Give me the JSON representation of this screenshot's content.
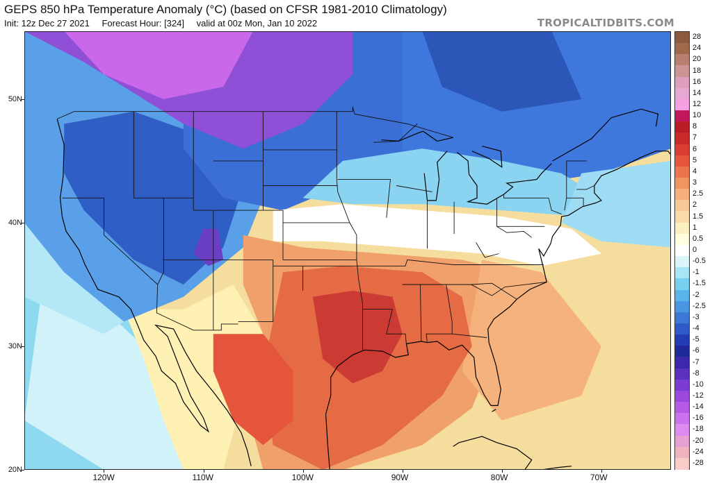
{
  "header": {
    "title": "GEPS 850 hPa Temperature Anomaly (°C) (based on CFSR 1981-2010 Climatology)",
    "init": "Init: 12z Dec 27 2021",
    "forecast_hour": "Forecast Hour: [324]",
    "valid": "valid at 00z Mon, Jan 10 2022",
    "watermark": "TROPICALTIDBITS.COM"
  },
  "map": {
    "projection": "lat-lon",
    "lon_range": [
      -128,
      -63
    ],
    "lat_range": [
      20,
      55.5
    ],
    "lat_labels": [
      {
        "v": 20,
        "t": "20N"
      },
      {
        "v": 30,
        "t": "30N"
      },
      {
        "v": 40,
        "t": "40N"
      },
      {
        "v": 50,
        "t": "50N"
      }
    ],
    "lon_labels": [
      {
        "v": -120,
        "t": "120W"
      },
      {
        "v": -110,
        "t": "110W"
      },
      {
        "v": -100,
        "t": "100W"
      },
      {
        "v": -90,
        "t": "90W"
      },
      {
        "v": -80,
        "t": "80W"
      },
      {
        "v": -70,
        "t": "70W"
      }
    ],
    "background_color": "#f5dd9e",
    "anomaly_regions": [
      {
        "name": "ocean-south-pacific",
        "color": "#ffffc8",
        "points": [
          [
            -128,
            33
          ],
          [
            -121,
            33
          ],
          [
            -118,
            30
          ],
          [
            -114,
            25
          ],
          [
            -110,
            21
          ],
          [
            -108,
            20
          ],
          [
            -128,
            20
          ]
        ]
      },
      {
        "name": "west-coast-cyan",
        "color": "#8fd9f0",
        "points": [
          [
            -128,
            46
          ],
          [
            -121,
            42
          ],
          [
            -119,
            36
          ],
          [
            -115,
            32
          ],
          [
            -112,
            28
          ],
          [
            -110,
            22
          ],
          [
            -114,
            20
          ],
          [
            -128,
            20
          ]
        ]
      },
      {
        "name": "pale-cyan-sw",
        "color": "#d2f2fa",
        "points": [
          [
            -126,
            36
          ],
          [
            -120,
            33
          ],
          [
            -116,
            30
          ],
          [
            -112,
            24
          ],
          [
            -110,
            20
          ],
          [
            -120,
            20
          ],
          [
            -128,
            24
          ]
        ]
      },
      {
        "name": "southwest-yellow",
        "color": "#fff0b4",
        "points": [
          [
            -118,
            33
          ],
          [
            -112,
            33
          ],
          [
            -107,
            35
          ],
          [
            -104,
            31
          ],
          [
            -106,
            26
          ],
          [
            -108,
            20
          ],
          [
            -112,
            20
          ],
          [
            -114,
            24
          ],
          [
            -116,
            29
          ]
        ]
      },
      {
        "name": "pacific-cyan-west",
        "color": "#b3e8f7",
        "points": [
          [
            -128,
            55.5
          ],
          [
            -120,
            55.5
          ],
          [
            -118,
            50
          ],
          [
            -121,
            43
          ],
          [
            -119,
            38
          ],
          [
            -116,
            33
          ],
          [
            -120,
            31
          ],
          [
            -128,
            34
          ]
        ]
      },
      {
        "name": "west-blue",
        "color": "#5aa0e8",
        "points": [
          [
            -128,
            55.5
          ],
          [
            -112,
            55.5
          ],
          [
            -106,
            48
          ],
          [
            -104,
            42
          ],
          [
            -106,
            38
          ],
          [
            -112,
            34
          ],
          [
            -118,
            32
          ],
          [
            -124,
            36
          ],
          [
            -128,
            40
          ]
        ]
      },
      {
        "name": "great-basin-darkblue",
        "color": "#2f5fc4",
        "points": [
          [
            -124,
            48
          ],
          [
            -117,
            49
          ],
          [
            -110,
            47
          ],
          [
            -106,
            43
          ],
          [
            -108,
            38
          ],
          [
            -112,
            35
          ],
          [
            -117,
            37
          ],
          [
            -122,
            41
          ],
          [
            -124,
            44
          ]
        ]
      },
      {
        "name": "four-corners-purple",
        "color": "#6a3fc4",
        "points": [
          [
            -110,
            39.5
          ],
          [
            -108.5,
            39.5
          ],
          [
            -108,
            37
          ],
          [
            -109.5,
            36.5
          ],
          [
            -111,
            37.5
          ]
        ]
      },
      {
        "name": "north-plains-blue",
        "color": "#3c6fd6",
        "points": [
          [
            -112,
            55.5
          ],
          [
            -90,
            55.5
          ],
          [
            -88,
            50
          ],
          [
            -88,
            45.5
          ],
          [
            -96,
            43
          ],
          [
            -102,
            41
          ],
          [
            -108,
            42
          ],
          [
            -112,
            46
          ]
        ]
      },
      {
        "name": "canada-purple",
        "color": "#8f4fd6",
        "points": [
          [
            -128,
            55.5
          ],
          [
            -95,
            55.5
          ],
          [
            -95,
            52
          ],
          [
            -100,
            48
          ],
          [
            -106,
            46
          ],
          [
            -112,
            48
          ],
          [
            -118,
            51
          ],
          [
            -122,
            53
          ]
        ]
      },
      {
        "name": "bc-magenta",
        "color": "#c968e8",
        "points": [
          [
            -124,
            55.5
          ],
          [
            -105,
            55.5
          ],
          [
            -108,
            51
          ],
          [
            -114,
            50
          ],
          [
            -120,
            52
          ]
        ]
      },
      {
        "name": "northeast-blue",
        "color": "#3e78dc",
        "points": [
          [
            -90,
            55.5
          ],
          [
            -63,
            55.5
          ],
          [
            -63,
            46
          ],
          [
            -70,
            44
          ],
          [
            -78,
            43
          ],
          [
            -85,
            44
          ],
          [
            -90,
            46
          ]
        ]
      },
      {
        "name": "hudson-darkblue",
        "color": "#2c56b8",
        "points": [
          [
            -88,
            55.5
          ],
          [
            -75,
            55.5
          ],
          [
            -72,
            50
          ],
          [
            -80,
            49
          ],
          [
            -86,
            51
          ]
        ]
      },
      {
        "name": "great-lakes-cyan",
        "color": "#8ad4f2",
        "points": [
          [
            -96,
            45
          ],
          [
            -88,
            46
          ],
          [
            -80,
            45
          ],
          [
            -74,
            44
          ],
          [
            -70,
            42
          ],
          [
            -72,
            40.5
          ],
          [
            -80,
            41
          ],
          [
            -88,
            41.5
          ],
          [
            -95,
            41.5
          ],
          [
            -100,
            42
          ]
        ]
      },
      {
        "name": "atlantic-cyan",
        "color": "#9ddcf3",
        "points": [
          [
            -72,
            44
          ],
          [
            -63,
            45
          ],
          [
            -63,
            38
          ],
          [
            -70,
            38.5
          ],
          [
            -74,
            40
          ]
        ]
      },
      {
        "name": "midwest-white",
        "color": "#ffffff",
        "points": [
          [
            -103,
            41
          ],
          [
            -96,
            41.5
          ],
          [
            -88,
            41
          ],
          [
            -80,
            40.5
          ],
          [
            -73,
            39.5
          ],
          [
            -70,
            37.5
          ],
          [
            -76,
            36.5
          ],
          [
            -82,
            37.5
          ],
          [
            -90,
            38
          ],
          [
            -98,
            38.5
          ],
          [
            -103,
            38.5
          ]
        ]
      },
      {
        "name": "southern-plains-orange",
        "color": "#f0a06a",
        "points": [
          [
            -106,
            39
          ],
          [
            -100,
            38
          ],
          [
            -92,
            37.5
          ],
          [
            -84,
            37
          ],
          [
            -76,
            35.5
          ],
          [
            -74,
            33
          ],
          [
            -80,
            31
          ],
          [
            -83,
            25
          ],
          [
            -88,
            22
          ],
          [
            -96,
            20
          ],
          [
            -104,
            20
          ],
          [
            -106,
            26
          ],
          [
            -104,
            31
          ],
          [
            -106,
            35
          ]
        ]
      },
      {
        "name": "southeast-orange",
        "color": "#f5b27c",
        "points": [
          [
            -82,
            37
          ],
          [
            -76,
            36
          ],
          [
            -73,
            33
          ],
          [
            -70,
            30
          ],
          [
            -72,
            26
          ],
          [
            -80,
            24
          ],
          [
            -84,
            28
          ]
        ]
      },
      {
        "name": "gulf-red",
        "color": "#e46b44",
        "points": [
          [
            -102,
            36
          ],
          [
            -96,
            36.5
          ],
          [
            -88,
            36
          ],
          [
            -84,
            34
          ],
          [
            -83,
            30
          ],
          [
            -86,
            26
          ],
          [
            -92,
            22
          ],
          [
            -98,
            20
          ],
          [
            -103,
            22
          ],
          [
            -104,
            28
          ]
        ]
      },
      {
        "name": "texas-darkred",
        "color": "#cc3b33",
        "points": [
          [
            -99,
            34
          ],
          [
            -95,
            34.5
          ],
          [
            -91,
            34
          ],
          [
            -90,
            31
          ],
          [
            -92,
            28
          ],
          [
            -95,
            27
          ],
          [
            -98,
            29
          ]
        ]
      },
      {
        "name": "mexico-red",
        "color": "#e4553c",
        "points": [
          [
            -109,
            31
          ],
          [
            -104,
            31
          ],
          [
            -101,
            28
          ],
          [
            -101,
            24
          ],
          [
            -104,
            22
          ],
          [
            -107,
            24
          ],
          [
            -109,
            28
          ]
        ]
      }
    ],
    "state_lines": [
      "-124.7,48.4 -123,49 -95,49 -95,49.4 -94.8,48.8 -89.5,48 -84.9,46.9",
      "-117,49 -117,42 -111,42 -111,49",
      "-124.2,42 -120,42 -120,39 -114.6,35",
      "-114,42 -114,36 -114.6,35 -114.7,32.7 -111,31.3 -108.2,31.3 -108.2,31.8 -106.5,31.8",
      "-109,45 -104,45",
      "-104,49 -104,41 -102,41 -102,37",
      "-111,41 -111,42",
      "-111,41 -104,41",
      "-109,41 -109,31.3",
      "-114,37 -103,37",
      "-103,37 -103,32 -106.5,32",
      "-104,43 -96.5,43",
      "-104,45.9 -96.6,45.9",
      "-102,40 -95.3,40",
      "-102,37 -94.6,37",
      "-100,36.5 -100,34.5",
      "-103,36.5 -94.4,36.5",
      "-96.6,49 -96.6,43.5 -96.5,42.5 -95.3,40 -94.6,39 -94.6,37 -94.4,35.4 -94,33.5 -94,29.7",
      "-94.6,36.5 -89.7,36.5 -89.5,37 -84.9,36.6 -81.7,36.6 -75.8,36.6",
      "-94,33 -91,33",
      "-91.6,40.4 -91.2,43.5 -96.5,43.5",
      "-91,33 -91.6,31 -89.7,31 -89.6,30.2",
      "-90,35 -88.2,35 -88.1,30.4",
      "-88.2,35 -85.6,35 -85,32 -85,31 -87.6,31 -87.5,30.3",
      "-85.6,35 -83.1,35 -81,34.1 -79.7,34.8 -75.5,35.2",
      "-85,31 -81.5,30.7",
      "-83.1,35 -81,35.1 -78.5,33.8",
      "-87.5,41.8 -87.5,37.9",
      "-84.8,41.7 -84.8,39.1",
      "-80.5,42 -80.5,39.7 -75.7,39.7",
      "-80.5,39.7 -79.5,39.2 -77.8,39.3 -77,38.8",
      "-82.6,38.4 -81.7,37.2 -80.3,37.5",
      "-79.8,42.3 -79.8,42 -75.3,42 -75,41 -74,40.7",
      "-73.5,42 -73.5,45 -71.5,45",
      "-72.5,42.7 -71.5,42.7 -70.7,43",
      "-71.8,42 -71.8,41.3",
      "-73.7,41 -73.5,42 -71.8,42",
      "-90.6,43 -87,42.5",
      "-92.9,46.5 -90.4,46.6 -88.5,48"
    ],
    "coastlines": [
      "-124.7,48.4 -124,46.3 -124.1,43.7 -124.4,42 -124.2,40.5 -123.8,39.3 -122.5,37.8 -121.9,36.6 -120.6,34.6 -118.5,34 -117.3,33 -116.6,31.7 -116,30.5 -114.8,29.2 -114.2,28 -112.8,27 -112,25.5 -110.3,23.6 -109.5,23.1 -110,24.2 -111.3,26 -112.5,28.5 -113.6,30.8 -114.8,31.7 -113,31.4 -111.8,29.5 -110.7,28 -109,26.3 -107.6,24.8 -106.2,23 -105.6,21.6 -105.2,20.3",
      "-97.3,20 -97.5,22 -97.7,24.5 -97.2,26 -97.2,27.5 -96.5,28.4 -95,29.3 -93.8,29.7 -92,29.6 -90.7,29.1 -89.4,29.3 -89.6,30.2 -88.1,30.4 -87.5,30.3 -86.5,30.4 -85.3,29.7 -84,30.1 -82.8,29.1 -82.6,27.5 -81.8,26.1 -81.1,25.2 -80.4,25.2 -80.1,26.5 -80.6,28.5 -81.3,30.3 -81.4,31.4 -80.8,32.2 -79.2,33.2 -78.5,33.8 -77.2,34.6 -75.5,35.2 -75.9,36.6 -76.3,37.9 -75.8,37.3 -75.1,38.3 -74.9,38.9 -74.1,39.8 -74,40.5 -73.3,40.6 -71.9,41.3 -70.6,41.6 -70,41.8 -70.7,42.4 -70.7,43 -70,43.8 -68.5,44.3 -67,44.9 -66,45.3 -64.5,45.8 -63.3,45.8 -63,45.5",
      "-92.1,46.7 -90.4,46.6 -88.3,47.3 -87.9,47.4 -86.5,46.6 -84.9,46.9",
      "-87.8,44 -87.5,41.8 -86.6,41.8 -86.3,43.5 -86.5,44.9 -85.5,45.8",
      "-84.5,45.7 -83.4,45 -83.3,43.9 -82.5,43 -82.5,42 -83.4,41.7 -81.5,41.5 -79.8,42.3 -78.9,42.9 -79.5,43.2 -76.5,43.5 -76,44 -75,44.8",
      "-83,45.8 -81.3,45.2 -80,44.5 -80.1,45.8 -82,46.2",
      "-74.9,45 -71,46.8 -69,48.5 -66,49.2 -64.3,48.8 -64.5,47.8",
      "-73,20.3 -74.2,20.2 -76,20 -77.7,20 -77,20.8 -78.5,21.7 -80.5,22.2 -82,22.7 -84.3,22.2 -84.9,21.9",
      "-81,24.7 -80.6,24.9"
    ]
  },
  "colorbar": {
    "levels": [
      {
        "label": "28",
        "color": "#8c5a3c"
      },
      {
        "label": "24",
        "color": "#a06a4a"
      },
      {
        "label": "20",
        "color": "#b98070"
      },
      {
        "label": "18",
        "color": "#cc9494"
      },
      {
        "label": "16",
        "color": "#de9ebd"
      },
      {
        "label": "14",
        "color": "#e6a8d2"
      },
      {
        "label": "12",
        "color": "#f5a0e0"
      },
      {
        "label": "10",
        "color": "#c2185b"
      },
      {
        "label": "8",
        "color": "#b81e24"
      },
      {
        "label": "7",
        "color": "#cc2a2a"
      },
      {
        "label": "6",
        "color": "#dc3c32"
      },
      {
        "label": "5",
        "color": "#e4553c"
      },
      {
        "label": "4",
        "color": "#ec744e"
      },
      {
        "label": "3",
        "color": "#f09560"
      },
      {
        "label": "2.5",
        "color": "#f5af7a"
      },
      {
        "label": "2",
        "color": "#f8c896"
      },
      {
        "label": "1.5",
        "color": "#fadcaa"
      },
      {
        "label": "1",
        "color": "#fdf0c0"
      },
      {
        "label": "0.5",
        "color": "#ffffe0"
      },
      {
        "label": "0",
        "color": "#ffffff"
      },
      {
        "label": "-0.5",
        "color": "#dcf5fa"
      },
      {
        "label": "-1",
        "color": "#a8e6f5"
      },
      {
        "label": "-1.5",
        "color": "#78d0f0"
      },
      {
        "label": "-2",
        "color": "#5ab4ec"
      },
      {
        "label": "-2.5",
        "color": "#4a96e2"
      },
      {
        "label": "-3",
        "color": "#3c78d6"
      },
      {
        "label": "-4",
        "color": "#2e5ac8"
      },
      {
        "label": "-5",
        "color": "#243cb4"
      },
      {
        "label": "-6",
        "color": "#1e2896"
      },
      {
        "label": "-7",
        "color": "#3c28aa"
      },
      {
        "label": "-8",
        "color": "#5a32be"
      },
      {
        "label": "-10",
        "color": "#7a3cd2"
      },
      {
        "label": "-12",
        "color": "#9a48de"
      },
      {
        "label": "-14",
        "color": "#b45ae6"
      },
      {
        "label": "-16",
        "color": "#cc72ee"
      },
      {
        "label": "-18",
        "color": "#dc8cf0"
      },
      {
        "label": "-20",
        "color": "#e6a0d2"
      },
      {
        "label": "-24",
        "color": "#f0b4be"
      },
      {
        "label": "-28",
        "color": "#f8ccc8"
      }
    ]
  }
}
